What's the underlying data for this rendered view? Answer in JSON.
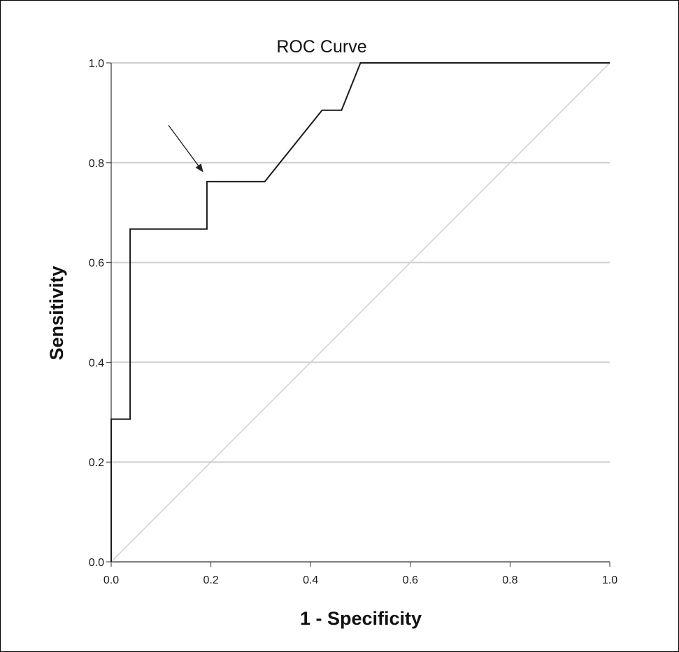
{
  "chart_data": {
    "type": "line",
    "title": "ROC Curve",
    "xlabel": "1 - Specificity",
    "ylabel": "Sensitivity",
    "xlim": [
      0.0,
      1.0
    ],
    "ylim": [
      0.0,
      1.0
    ],
    "x_ticks": [
      "0.0",
      "0.2",
      "0.4",
      "0.6",
      "0.8",
      "1.0"
    ],
    "y_ticks": [
      "0.0",
      "0.2",
      "0.4",
      "0.6",
      "0.8",
      "1.0"
    ],
    "grid": "horizontal",
    "series": [
      {
        "points": [
          [
            0.0,
            0.0
          ],
          [
            0.0,
            0.286
          ],
          [
            0.038,
            0.286
          ],
          [
            0.038,
            0.667
          ],
          [
            0.192,
            0.667
          ],
          [
            0.192,
            0.762
          ],
          [
            0.308,
            0.762
          ],
          [
            0.423,
            0.905
          ],
          [
            0.462,
            0.905
          ],
          [
            0.5,
            1.0
          ],
          [
            1.0,
            1.0
          ]
        ],
        "color": "#1a1a1a"
      },
      {
        "points": [
          [
            0.0,
            0.0
          ],
          [
            1.0,
            1.0
          ]
        ],
        "color": "#d0d0d0"
      }
    ],
    "annotations": [
      {
        "type": "arrow",
        "from": [
          0.115,
          0.875
        ],
        "to": [
          0.183,
          0.783
        ],
        "color": "#222222"
      }
    ]
  }
}
